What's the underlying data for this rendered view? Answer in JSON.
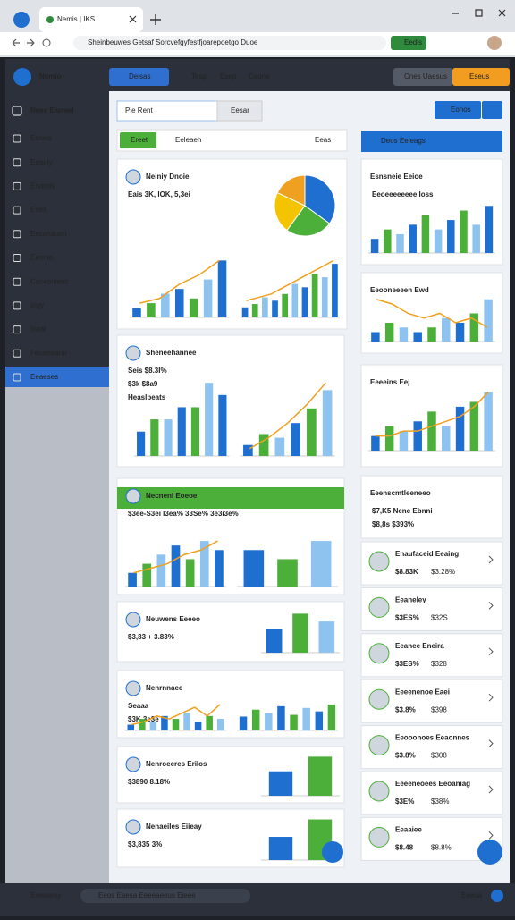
{
  "browser": {
    "tab": "Nemis | IKS",
    "url": "Sheinbeuwes Getsaf Sorcvefgyfestfjoarepoetgo Duoe",
    "ext": "Eedis"
  },
  "topbar": {
    "brand": "Nemio",
    "primary": "Deisas",
    "links": [
      "Tesp",
      "Esep",
      "Ceone"
    ],
    "btn_a": "Cnes Uaesus",
    "btn_b": "Eseus"
  },
  "sidebar": {
    "title": "Nees Eiwnwl",
    "items": [
      "Esneis",
      "Eeaeiy",
      "Enarnls",
      "Enen",
      "Eesanauen",
      "Eeonia",
      "Caceonieas",
      "Irigy",
      "Ineal",
      "Feuanearer",
      "Eeaeses"
    ],
    "active": 10
  },
  "toolbar": {
    "tab": "Pie Rent",
    "search": "Eesar",
    "btn": "Eonos"
  },
  "filter": {
    "chip": "Ereet",
    "label": "Eeleaeh",
    "right": "Eeas"
  },
  "panel": {
    "title": "Deos Eeleags"
  },
  "bar_palette": [
    "#1f6fd1",
    "#4caf3a",
    "#8ec3f0"
  ],
  "line_color": "#f0a020",
  "pie_palette": [
    "#1f6fd1",
    "#4caf3a",
    "#f5c400",
    "#f0a020"
  ],
  "cards": [
    {
      "title": "Neiniy Dnoie",
      "stats": [
        "Eais 3K, IOK, 5,3ei"
      ],
      "stat_color": "#1f6fd1",
      "pie": [
        35,
        25,
        22,
        18
      ],
      "charts": [
        {
          "bars": [
            2,
            3,
            5,
            6,
            4,
            8,
            12
          ],
          "line": [
            3,
            4,
            7,
            9,
            12
          ]
        },
        {
          "bars": [
            3,
            4,
            6,
            5,
            7,
            10,
            9,
            13,
            12,
            16
          ],
          "line": [
            5,
            6,
            7,
            9,
            11,
            13,
            15,
            17
          ]
        }
      ]
    },
    {
      "title": "Sheneehannee",
      "stats": [
        "Seis $8.3I%",
        "$3k $8a9",
        "Heaslbeats"
      ],
      "stat_color": "#f0a020",
      "charts": [
        {
          "bars": [
            2,
            3,
            3,
            4,
            4,
            6,
            5
          ]
        },
        {
          "bars": [
            3,
            6,
            5,
            9,
            13,
            18
          ],
          "line": [
            2,
            5,
            9,
            14,
            20
          ]
        }
      ]
    },
    {
      "title": "Necnenl Eoeoe",
      "accent": "#4caf3a",
      "stats": [
        "$3ee-S3ei   I3ea%   33Se%   3e3i3e%"
      ],
      "stat_color": "#2e8b3e",
      "charts": [
        {
          "bars": [
            3,
            5,
            7,
            9,
            6,
            10,
            8
          ],
          "line": [
            3,
            4,
            5,
            7,
            8,
            10
          ]
        },
        {
          "bars": [
            8,
            6,
            10
          ]
        }
      ]
    },
    {
      "title": "Neuwens Eeeeo",
      "stats": [
        "$3,83 + 3.83%"
      ],
      "stat_color": "#2e8b3e",
      "charts": [
        {
          "bars": [
            6,
            10,
            8
          ]
        }
      ]
    },
    {
      "title": "Nenrnnaee",
      "stats": [
        "Seaaa",
        "$3K 3e3e"
      ],
      "stat_color": "#2e8b3e",
      "charts": [
        {
          "bars": [
            2,
            4,
            3,
            5,
            4,
            6,
            3,
            5,
            4
          ],
          "line": [
            2,
            3,
            5,
            4,
            6,
            8,
            5,
            9
          ]
        },
        {
          "bars": [
            8,
            12,
            10,
            14,
            9,
            13,
            11,
            15
          ]
        }
      ]
    },
    {
      "title": "Nenroeeres Erilos",
      "stats": [
        "$3890  8.18%"
      ],
      "stat_color": "#2e8b3e",
      "charts": [
        {
          "bars": [
            5,
            8
          ]
        }
      ]
    },
    {
      "title": "Nenaeiles Eiieay",
      "stats": [
        "$3,835 3%"
      ],
      "stat_color": "#2e8b3e",
      "charts": [
        {
          "bars": [
            4,
            7
          ]
        }
      ]
    }
  ],
  "side_cards": [
    {
      "title": "Esnsneie Eeioe",
      "stats": [
        "Eeoeeeeeeee Ioss"
      ],
      "stat_color": "#333333",
      "charts": [
        {
          "bars": [
            3,
            5,
            4,
            6,
            8,
            5,
            7,
            9,
            6,
            10
          ]
        }
      ]
    },
    {
      "title": "Eeooneeeen Ewd",
      "stats": [],
      "stat_color": "#333333",
      "charts": [
        {
          "bars": [
            2,
            4,
            3,
            2,
            3,
            5,
            4,
            6,
            9
          ],
          "line": [
            9,
            8,
            6,
            5,
            6,
            4,
            5,
            3
          ]
        }
      ]
    },
    {
      "title": "Eeeeins Eej",
      "stats": [],
      "stat_color": "#333333",
      "charts": [
        {
          "bars": [
            3,
            5,
            4,
            6,
            8,
            5,
            9,
            10,
            12
          ],
          "line": [
            3,
            3,
            4,
            4,
            5,
            6,
            7,
            9,
            12
          ]
        }
      ]
    },
    {
      "title": "Eeenscmtleeneeo",
      "stats": [
        "$7,K5  Nenc Ebnni",
        "$8,8s  $393%"
      ],
      "stat_color": "#2e8b3e",
      "charts": []
    }
  ],
  "list": [
    {
      "name": "Enaufaceid Eeaing",
      "value": "$8.83K",
      "delta": "$3.28%"
    },
    {
      "name": "Eeaneley",
      "value": "$3ES%",
      "delta": "$32S"
    },
    {
      "name": "Eeanee Eneira",
      "value": "$3ES%",
      "delta": "$328"
    },
    {
      "name": "Eeeenenoe Eaei",
      "value": "$3.8%",
      "delta": "$398"
    },
    {
      "name": "Eeooonoes Eeaonnes",
      "value": "$3.8%",
      "delta": "$308"
    },
    {
      "name": "Eeeeneoees Eeoaniag",
      "value": "$3E%",
      "delta": "$38%"
    },
    {
      "name": "Eeaaiee",
      "value": "$8.48",
      "delta": "$8.8%"
    }
  ],
  "footer": {
    "left": "Eeeearey",
    "middle": "Eeos Eaesa Eeeeaeeus Eieee",
    "right": "Eeeua"
  }
}
